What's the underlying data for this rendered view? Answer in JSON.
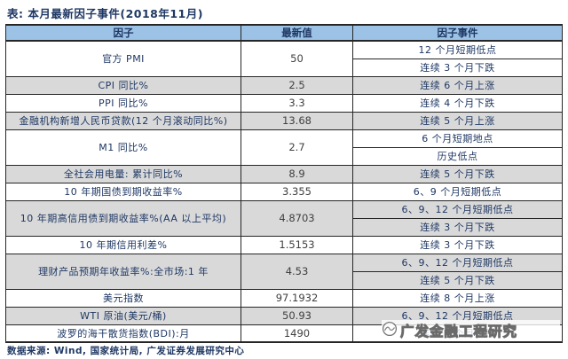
{
  "title": "表: 本月最新因子事件(2018年11月)",
  "table": {
    "headers": [
      "因子",
      "最新值",
      "因子事件"
    ],
    "rows": [
      {
        "factor": "官方 PMI",
        "value": "50",
        "events": [
          "12 个月短期低点",
          "连续 3 个月下跌"
        ]
      },
      {
        "factor": "CPI 同比%",
        "value": "2.5",
        "events": [
          "连续 6 个月上涨"
        ]
      },
      {
        "factor": "PPI 同比%",
        "value": "3.3",
        "events": [
          "连续 4 个月下跌"
        ]
      },
      {
        "factor": "金融机构新增人民币贷款(12 个月滚动同比%)",
        "value": "13.68",
        "events": [
          "连续 5 个月上涨"
        ]
      },
      {
        "factor": "M1 同比%",
        "value": "2.7",
        "events": [
          "6 个月短期地点",
          "历史低点"
        ]
      },
      {
        "factor": "全社会用电量: 累计同比%",
        "value": "8.9",
        "events": [
          "连续 5 个月下跌"
        ]
      },
      {
        "factor": "10 年期国债到期收益率%",
        "value": "3.355",
        "events": [
          "6、9 个月短期低点"
        ]
      },
      {
        "factor": "10 年期高信用债到期收益率%(AA 以上平均)",
        "value": "4.8703",
        "events": [
          "6、9、12 个月短期低点",
          "连续 3 个月下跌"
        ]
      },
      {
        "factor": "10 年期信用利差%",
        "value": "1.5153",
        "events": [
          "连续 3 个月下跌"
        ]
      },
      {
        "factor": "理财产品预期年收益率%:全市场:1 年",
        "value": "4.53",
        "events": [
          "6、9、12 个月短期低点",
          "连续 5 个月下跌"
        ]
      },
      {
        "factor": "美元指数",
        "value": "97.1932",
        "events": [
          "连续 8 个月上涨"
        ]
      },
      {
        "factor": "WTI 原油(美元/桶)",
        "value": "50.93",
        "events": [
          "6、9、12 个月短期低点"
        ]
      },
      {
        "factor": "波罗的海干散货指数(BDI):月",
        "value": "1490",
        "events": [
          "连续 4 个月下跌"
        ]
      }
    ]
  },
  "watermark": {
    "logo": "gf-circle-logo",
    "text": "广发金融工程研究"
  },
  "footer": "数据来源: Wind, 国家统计局, 广发证券发展研究中心",
  "colors": {
    "header_bg": "#9CC3E6",
    "alt_row_bg": "#D9D9D9",
    "border": "#262626",
    "text_primary": "#1F3864",
    "text_number": "#3F3F3F",
    "page_bg": "#FFFFFF"
  }
}
